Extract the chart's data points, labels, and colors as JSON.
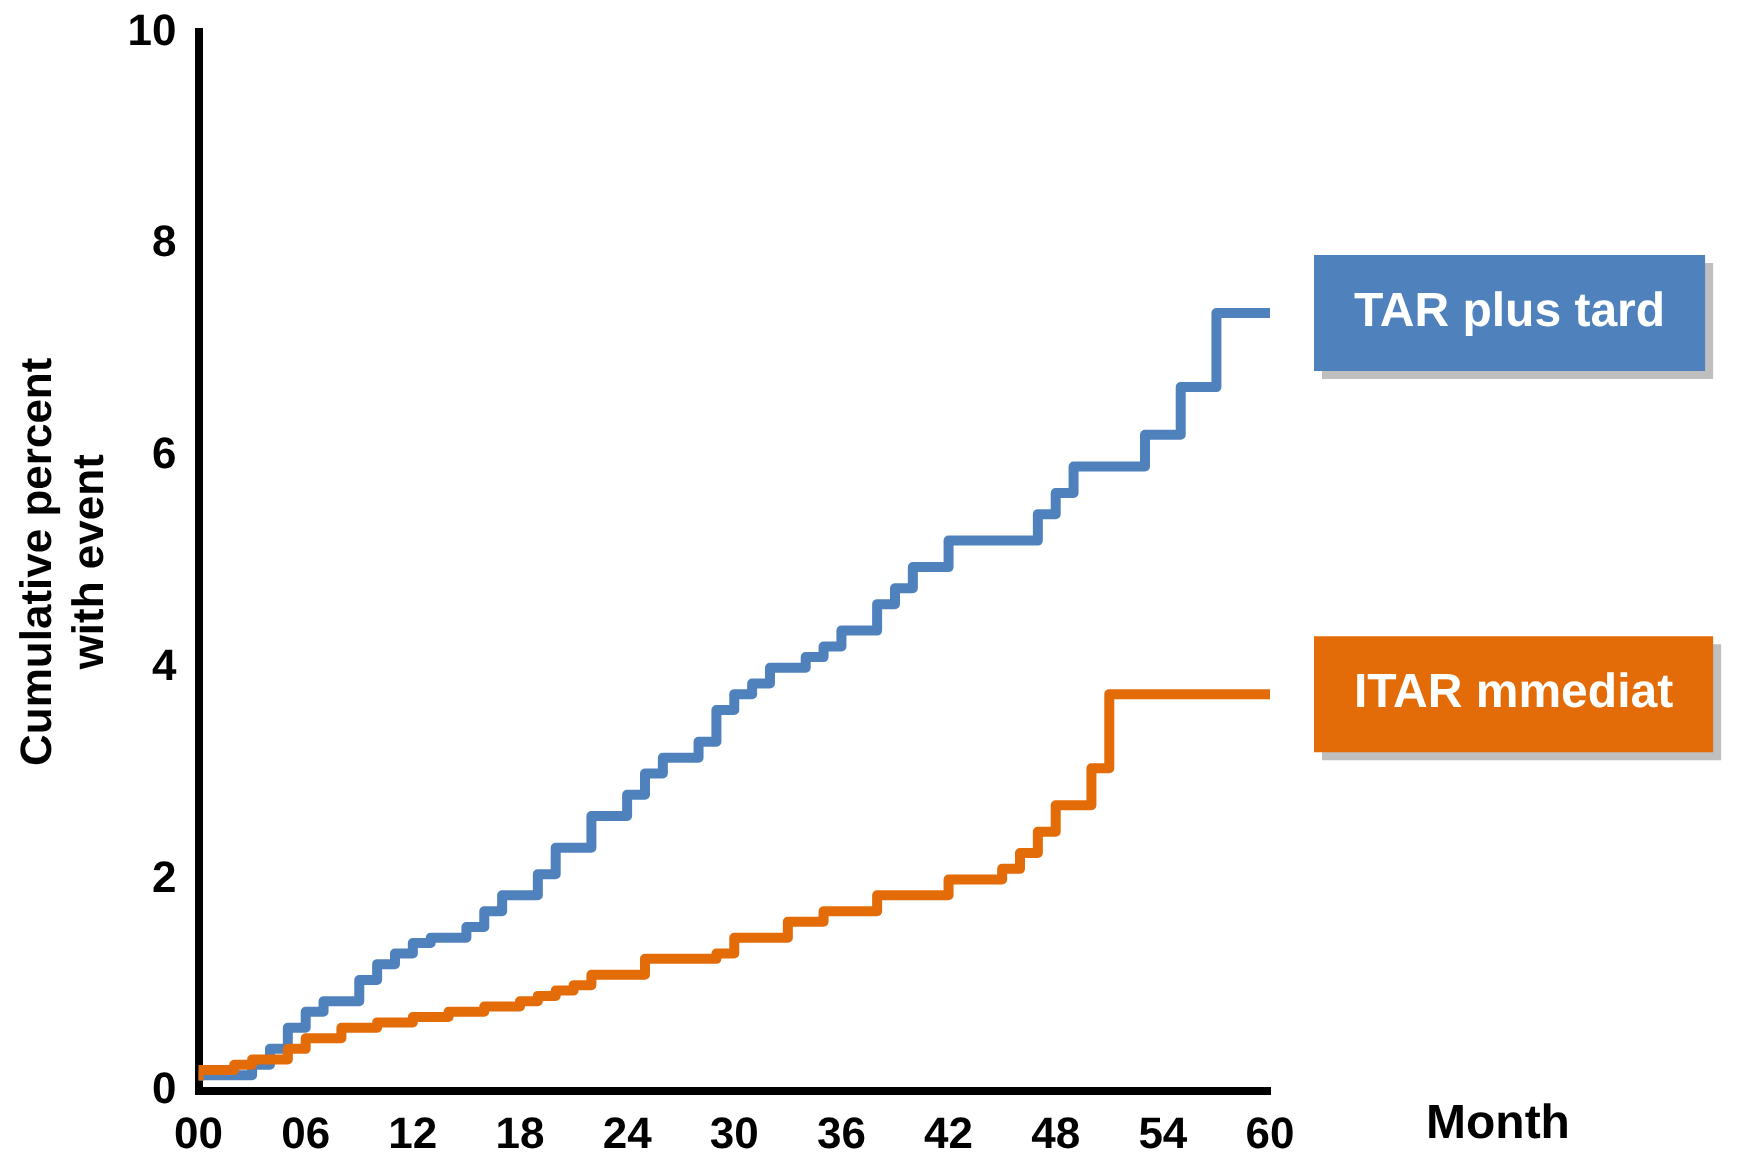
{
  "chart_data": {
    "type": "step",
    "xlabel": "Month",
    "ylabel": "Cumulative percent with event",
    "xlim": [
      0,
      60
    ],
    "xticks": [
      {
        "value": 0,
        "label": "00"
      },
      {
        "value": 6,
        "label": "06"
      },
      12,
      18,
      24,
      30,
      36,
      42,
      48,
      54,
      60
    ],
    "ylim": [
      0,
      10
    ],
    "yticks": [
      0,
      2,
      4,
      6,
      8,
      10
    ],
    "grid": false,
    "legend": false,
    "series": [
      {
        "name": "TAR plus tard",
        "color": "#4f81bd",
        "x": [
          0,
          3,
          4,
          5,
          6,
          7,
          9,
          10,
          11,
          12,
          13,
          15,
          16,
          17,
          19,
          20,
          22,
          24,
          25,
          26,
          28,
          29,
          30,
          31,
          32,
          34,
          35,
          36,
          38,
          39,
          40,
          42,
          47,
          48,
          49,
          53,
          55,
          57,
          60
        ],
        "values": [
          0.1,
          0.15,
          0.25,
          0.4,
          0.6,
          0.75,
          0.85,
          1.05,
          1.2,
          1.3,
          1.4,
          1.45,
          1.55,
          1.7,
          1.85,
          2.05,
          2.3,
          2.6,
          2.8,
          3.0,
          3.15,
          3.3,
          3.6,
          3.75,
          3.85,
          4.0,
          4.1,
          4.2,
          4.35,
          4.6,
          4.75,
          4.95,
          5.2,
          5.45,
          5.65,
          5.9,
          6.2,
          6.65,
          7.35
        ]
      },
      {
        "name": "ITAR mmediat",
        "color": "#e36c09",
        "x": [
          0,
          2,
          3,
          5,
          6,
          8,
          10,
          12,
          14,
          16,
          18,
          19,
          20,
          21,
          22,
          25,
          29,
          30,
          33,
          35,
          38,
          42,
          45,
          46,
          47,
          48,
          50,
          51,
          60
        ],
        "values": [
          0.1,
          0.2,
          0.25,
          0.3,
          0.4,
          0.5,
          0.6,
          0.65,
          0.7,
          0.75,
          0.8,
          0.85,
          0.9,
          0.95,
          1.0,
          1.1,
          1.25,
          1.3,
          1.45,
          1.6,
          1.7,
          1.85,
          2.0,
          2.1,
          2.25,
          2.45,
          2.7,
          3.05,
          3.75
        ]
      }
    ]
  }
}
